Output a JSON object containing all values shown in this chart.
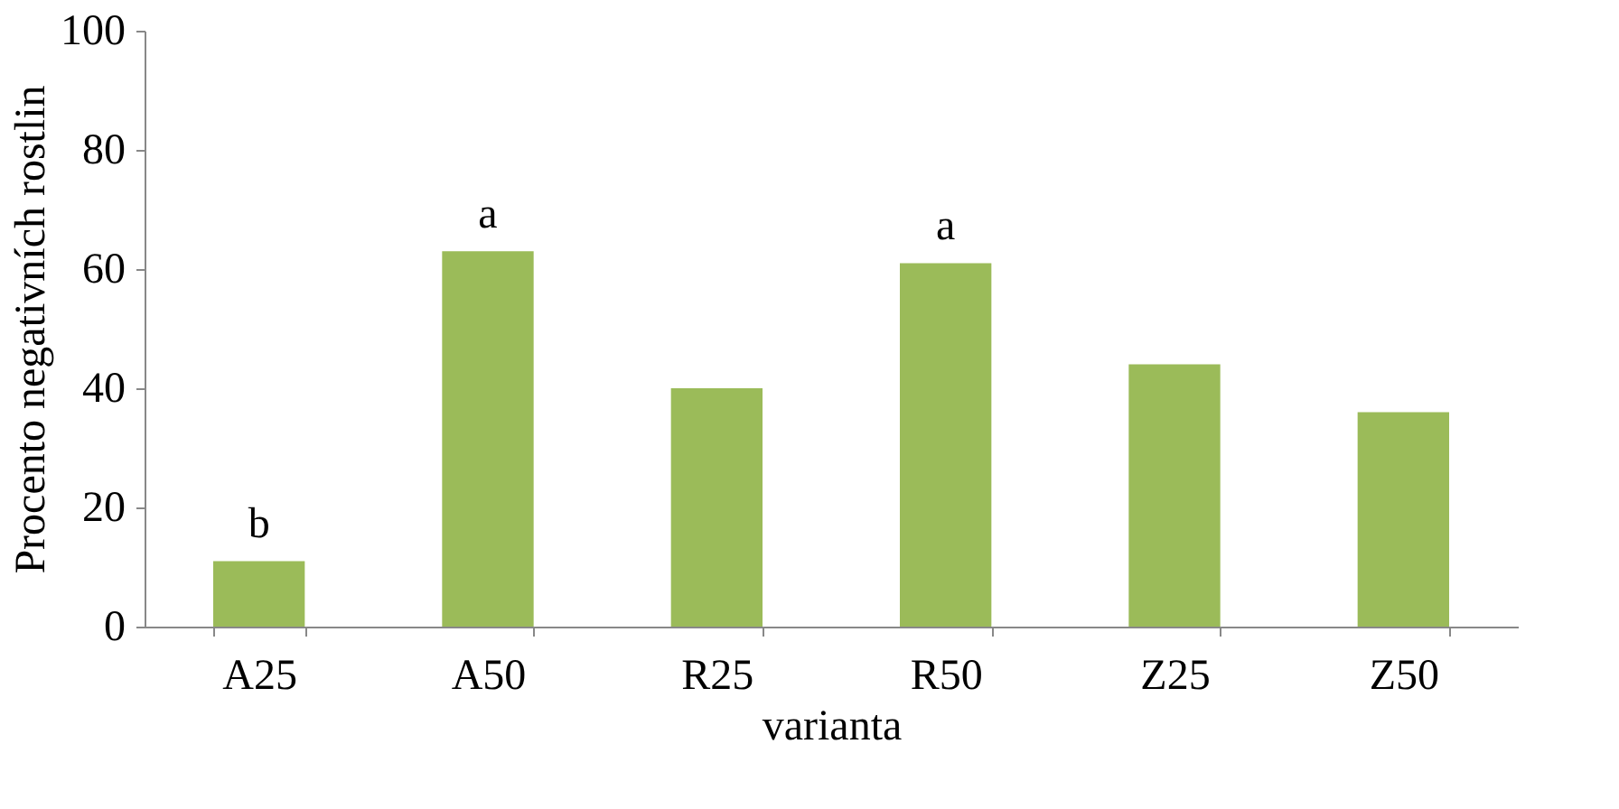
{
  "chart_data": {
    "type": "bar",
    "xlabel": "varianta",
    "ylabel": "Procento negativních rostlin",
    "categories": [
      "A25",
      "A50",
      "R25",
      "R50",
      "Z25",
      "Z50"
    ],
    "values": [
      11,
      63,
      40,
      61,
      44,
      36
    ],
    "color": "#9bbb59",
    "ylim": [
      0,
      100
    ],
    "yticks": [
      0,
      20,
      40,
      60,
      80,
      100
    ],
    "grid": false,
    "annotations": [
      {
        "text": "b",
        "x": "A25",
        "y": 11
      },
      {
        "text": "a",
        "x": "A50",
        "y": 63
      },
      {
        "text": "a",
        "x": "R50",
        "y": 61
      }
    ]
  }
}
